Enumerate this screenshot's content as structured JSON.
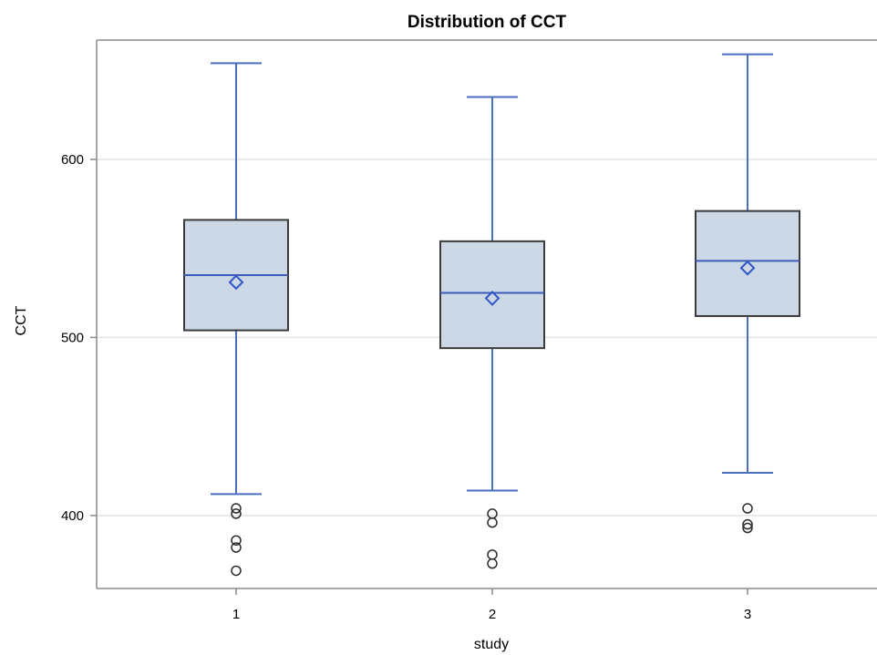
{
  "chart_data": {
    "type": "box",
    "title": "Distribution of CCT",
    "xlabel": "study",
    "ylabel": "CCT",
    "categories": [
      "1",
      "2",
      "3"
    ],
    "ylim": [
      359,
      667
    ],
    "yticks": [
      400,
      500,
      600
    ],
    "grid": true,
    "boxes": [
      {
        "category": "1",
        "whisker_low": 412,
        "q1": 504,
        "median": 535,
        "mean": 531,
        "q3": 566,
        "whisker_high": 654,
        "outliers": [
          404,
          401,
          386,
          382,
          369
        ]
      },
      {
        "category": "2",
        "whisker_low": 414,
        "q1": 494,
        "median": 525,
        "mean": 522,
        "q3": 554,
        "whisker_high": 635,
        "outliers": [
          401,
          396,
          378,
          373
        ]
      },
      {
        "category": "3",
        "whisker_low": 424,
        "q1": 512,
        "median": 543,
        "mean": 539,
        "q3": 571,
        "whisker_high": 659,
        "outliers": [
          404,
          395,
          393
        ]
      }
    ],
    "colors": {
      "box_fill": "#cdd8e6",
      "box_stroke": "#3a3a3a",
      "whisker": "#4a6fbf",
      "median": "#3b5db8",
      "mean_marker": "#2f55c8",
      "outlier": "#2b2b2b",
      "grid": "#e3e3e3",
      "frame": "#8a8a8a"
    }
  }
}
